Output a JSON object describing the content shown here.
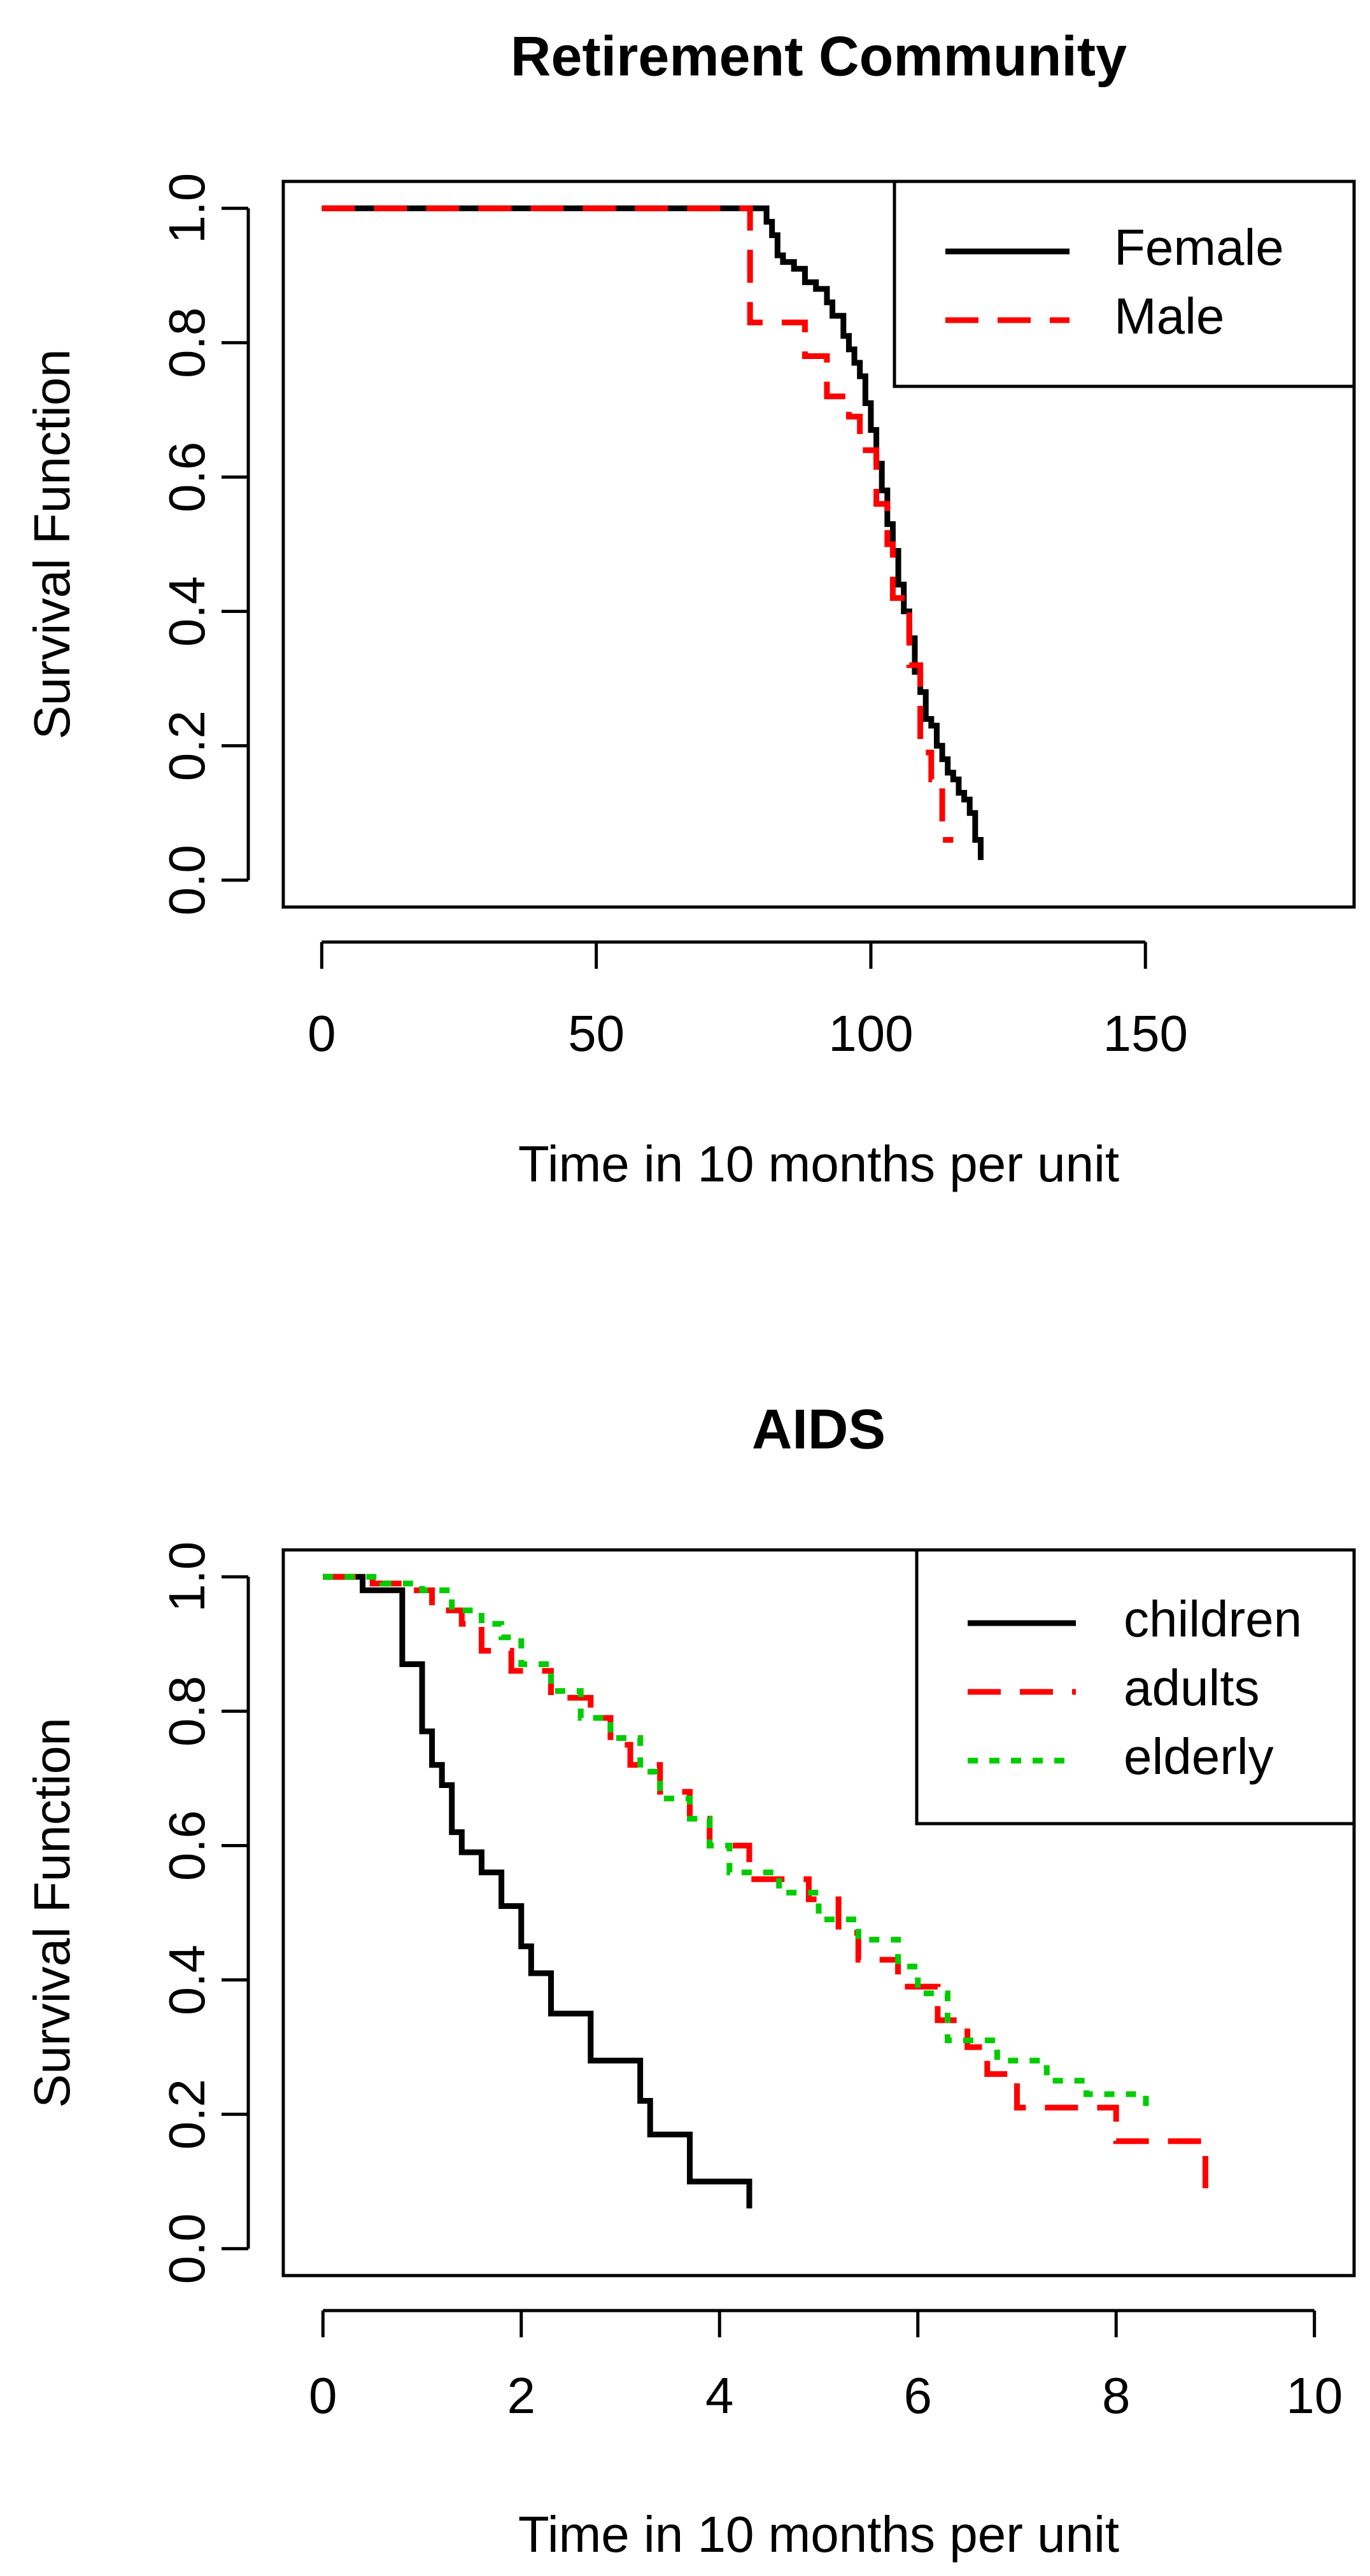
{
  "chart_data": [
    {
      "type": "line",
      "title": "Retirement Community",
      "xlabel": "Time in 10 months per unit",
      "ylabel": "Survival Function",
      "xlim": [
        -7,
        188
      ],
      "ylim": [
        -0.04,
        1.04
      ],
      "xticks": [
        0,
        50,
        100,
        150
      ],
      "xtick_labels": [
        "0",
        "50",
        "100",
        "150"
      ],
      "yticks": [
        0.0,
        0.2,
        0.4,
        0.6,
        0.8,
        1.0
      ],
      "ytick_labels": [
        "0.0",
        "0.2",
        "0.4",
        "0.6",
        "0.8",
        "1.0"
      ],
      "grid": false,
      "legend_position": "top-right",
      "series": [
        {
          "name": "Female",
          "color": "#000000",
          "dash": "solid",
          "x": [
            0,
            80,
            81,
            82,
            83,
            84,
            86,
            88,
            90,
            92,
            93,
            95,
            96,
            97,
            98,
            99,
            100,
            101,
            102,
            103,
            104,
            105,
            106,
            107,
            108,
            109,
            110,
            111,
            112,
            113,
            114,
            115,
            116,
            117,
            118,
            119,
            120
          ],
          "y": [
            1.0,
            1.0,
            0.98,
            0.96,
            0.93,
            0.92,
            0.91,
            0.89,
            0.88,
            0.86,
            0.84,
            0.81,
            0.79,
            0.77,
            0.75,
            0.71,
            0.67,
            0.62,
            0.58,
            0.53,
            0.49,
            0.44,
            0.4,
            0.36,
            0.31,
            0.28,
            0.24,
            0.23,
            0.2,
            0.18,
            0.16,
            0.15,
            0.13,
            0.12,
            0.1,
            0.06,
            0.03
          ]
        },
        {
          "name": "Male",
          "color": "#ff0000",
          "dash": "dashed",
          "x": [
            0,
            78,
            88,
            92,
            96,
            98,
            101,
            103,
            104,
            107,
            109,
            111,
            113,
            115
          ],
          "y": [
            1.0,
            0.83,
            0.78,
            0.72,
            0.69,
            0.64,
            0.56,
            0.5,
            0.42,
            0.32,
            0.19,
            0.15,
            0.06,
            0.06
          ]
        }
      ]
    },
    {
      "type": "line",
      "title": "AIDS",
      "xlabel": "Time in 10 months per unit",
      "ylabel": "Survival Function",
      "xlim": [
        -0.4,
        10.4
      ],
      "ylim": [
        -0.04,
        1.04
      ],
      "xticks": [
        0,
        2,
        4,
        6,
        8,
        10
      ],
      "xtick_labels": [
        "0",
        "2",
        "4",
        "6",
        "8",
        "10"
      ],
      "yticks": [
        0.0,
        0.2,
        0.4,
        0.6,
        0.8,
        1.0
      ],
      "ytick_labels": [
        "0.0",
        "0.2",
        "0.4",
        "0.6",
        "0.8",
        "1.0"
      ],
      "grid": false,
      "legend_position": "top-right",
      "series": [
        {
          "name": "children",
          "color": "#000000",
          "dash": "solid",
          "x": [
            0,
            0.4,
            0.8,
            1.0,
            1.1,
            1.2,
            1.3,
            1.4,
            1.6,
            1.8,
            2.0,
            2.1,
            2.3,
            2.7,
            3.2,
            3.3,
            3.7,
            4.3,
            4.3
          ],
          "y": [
            1.0,
            0.98,
            0.87,
            0.77,
            0.72,
            0.69,
            0.62,
            0.59,
            0.56,
            0.51,
            0.45,
            0.41,
            0.35,
            0.28,
            0.22,
            0.17,
            0.1,
            0.1,
            0.06
          ]
        },
        {
          "name": "adults",
          "color": "#ff0000",
          "dash": "dashed",
          "x": [
            0,
            0.5,
            0.8,
            1.1,
            1.4,
            1.6,
            1.9,
            2.3,
            2.7,
            2.9,
            3.1,
            3.4,
            3.7,
            3.9,
            4.3,
            4.9,
            5.2,
            5.4,
            5.8,
            6.2,
            6.5,
            6.7,
            7.0,
            8.0,
            8.9,
            8.9
          ],
          "y": [
            1.0,
            0.99,
            0.98,
            0.95,
            0.93,
            0.89,
            0.86,
            0.82,
            0.79,
            0.75,
            0.72,
            0.68,
            0.64,
            0.6,
            0.55,
            0.52,
            0.47,
            0.43,
            0.39,
            0.34,
            0.3,
            0.26,
            0.21,
            0.16,
            0.12,
            0.09
          ]
        },
        {
          "name": "elderly",
          "color": "#00cc00",
          "dash": "dotted",
          "x": [
            0,
            0.6,
            1.0,
            1.3,
            1.6,
            1.8,
            2.0,
            2.3,
            2.6,
            2.9,
            3.2,
            3.4,
            3.7,
            3.9,
            4.1,
            4.6,
            5.0,
            5.4,
            5.8,
            6.0,
            6.3,
            6.8,
            7.3,
            7.7,
            8.3,
            8.3
          ],
          "y": [
            1.0,
            0.99,
            0.98,
            0.95,
            0.93,
            0.91,
            0.87,
            0.83,
            0.79,
            0.76,
            0.71,
            0.67,
            0.64,
            0.6,
            0.56,
            0.53,
            0.49,
            0.46,
            0.42,
            0.38,
            0.31,
            0.28,
            0.25,
            0.23,
            0.2,
            0.2
          ]
        }
      ]
    }
  ]
}
